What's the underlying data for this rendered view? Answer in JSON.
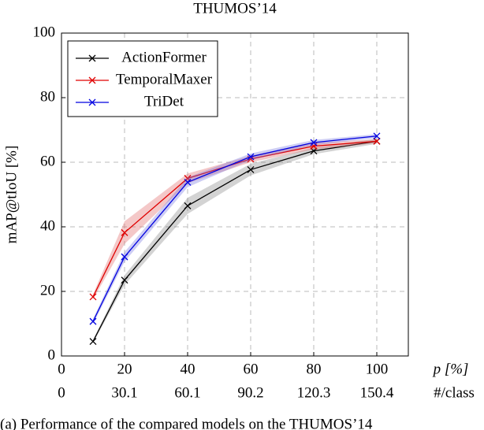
{
  "chart_data": {
    "type": "line",
    "title": "THUMOS’14",
    "ylabel": "mAP@tIoU [%]",
    "xlabel": "p [%]",
    "xlabel2": "#/class",
    "x": [
      10,
      20,
      40,
      60,
      80,
      100
    ],
    "series": [
      {
        "name": "ActionFormer",
        "color": "#000000",
        "band_color": "#808080",
        "values": [
          4.5,
          23.5,
          46.5,
          57.7,
          63.5,
          66.5
        ],
        "err": [
          0.5,
          1.5,
          2.5,
          1.8,
          1,
          0.8
        ]
      },
      {
        "name": "TemporalMaxer",
        "color": "#e00000",
        "band_color": "#e06060",
        "values": [
          18.3,
          38.2,
          55,
          61,
          65,
          66.5
        ],
        "err": [
          0.8,
          3.5,
          1.5,
          1,
          1,
          0.6
        ]
      },
      {
        "name": "TriDet",
        "color": "#0000e0",
        "band_color": "#7070e0",
        "values": [
          10.7,
          30.7,
          53.8,
          61.7,
          66.1,
          68.1
        ],
        "err": [
          0.8,
          1.5,
          1.5,
          1,
          0.8,
          0.6
        ]
      }
    ],
    "xlim": [
      0,
      110
    ],
    "ylim": [
      0,
      100
    ],
    "xticks": [
      0,
      20,
      40,
      60,
      80,
      100
    ],
    "xticks2": [
      0,
      {
        "value": 20,
        "label": "30.1"
      },
      {
        "value": 40,
        "label": "60.1"
      },
      {
        "value": 60,
        "label": "90.2"
      },
      {
        "value": 80,
        "label": "120.3"
      },
      {
        "value": 100,
        "label": "150.4"
      }
    ],
    "yticks": [
      0,
      20,
      40,
      60,
      80,
      100
    ],
    "grid": true,
    "legend": "upper left",
    "caption": "(a) Performance of the compared models on the THUMOS’14"
  }
}
